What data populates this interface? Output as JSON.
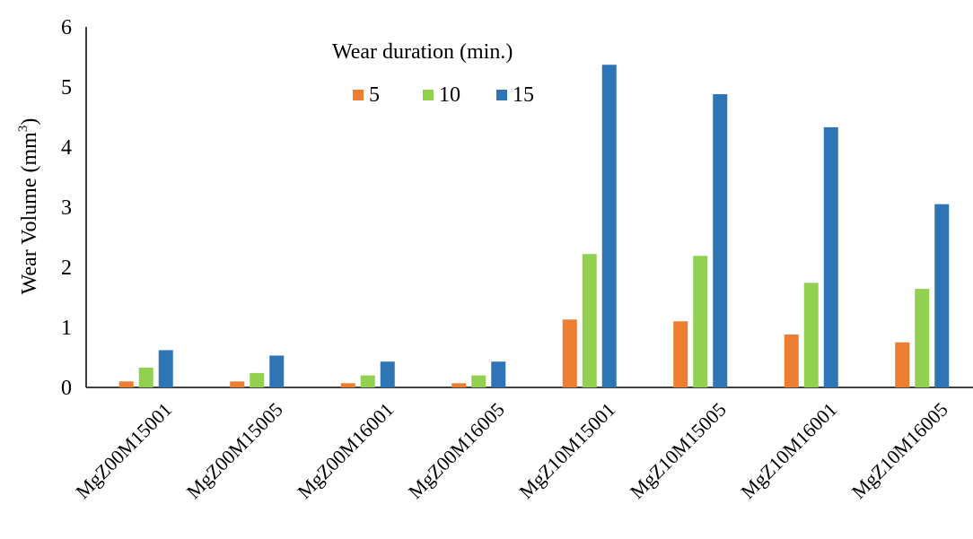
{
  "chart_data": {
    "type": "bar",
    "title": "",
    "xlabel": "",
    "ylabel": "Wear Volume  (mm",
    "ylabel_superscript": "3",
    "ylabel_suffix": ")",
    "ylim": [
      0,
      6
    ],
    "yticks": [
      "0",
      "1",
      "2",
      "3",
      "4",
      "5",
      "6"
    ],
    "grid": false,
    "legend_title": "Wear duration (min.)",
    "legend_position": "top-center",
    "categories": [
      "MgZ00M15001",
      "MgZ00M15005",
      "MgZ00M16001",
      "MgZ00M16005",
      "MgZ10M15001",
      "MgZ10M15005",
      "MgZ10M16001",
      "MgZ10M16005"
    ],
    "series": [
      {
        "name": "5",
        "color": "#ED7D31",
        "values": [
          0.1,
          0.1,
          0.07,
          0.07,
          1.13,
          1.1,
          0.88,
          0.75
        ]
      },
      {
        "name": "10",
        "color": "#92D050",
        "values": [
          0.33,
          0.24,
          0.2,
          0.2,
          2.22,
          2.19,
          1.74,
          1.64
        ]
      },
      {
        "name": "15",
        "color": "#2E75B6",
        "values": [
          0.62,
          0.53,
          0.43,
          0.43,
          5.37,
          4.88,
          4.33,
          3.05
        ]
      }
    ]
  }
}
